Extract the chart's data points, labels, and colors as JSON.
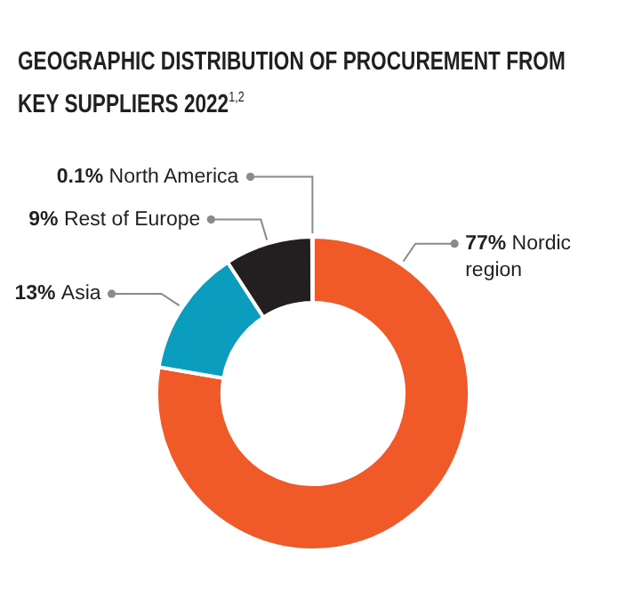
{
  "chart_data": {
    "type": "donut",
    "title": "GEOGRAPHIC DISTRIBUTION OF PROCUREMENT FROM KEY SUPPLIERS 2022$^{1,2}$",
    "categories": [
      "Nordic region",
      "Asia",
      "Rest of Europe",
      "North America"
    ],
    "values": [
      77,
      13,
      9,
      0.1
    ],
    "colors": [
      "#f05a28",
      "#0b9dbd",
      "#231f20",
      "#a0a0a0"
    ],
    "value_labels": [
      "77%",
      "13%",
      "9%",
      "0.1%"
    ]
  }
}
